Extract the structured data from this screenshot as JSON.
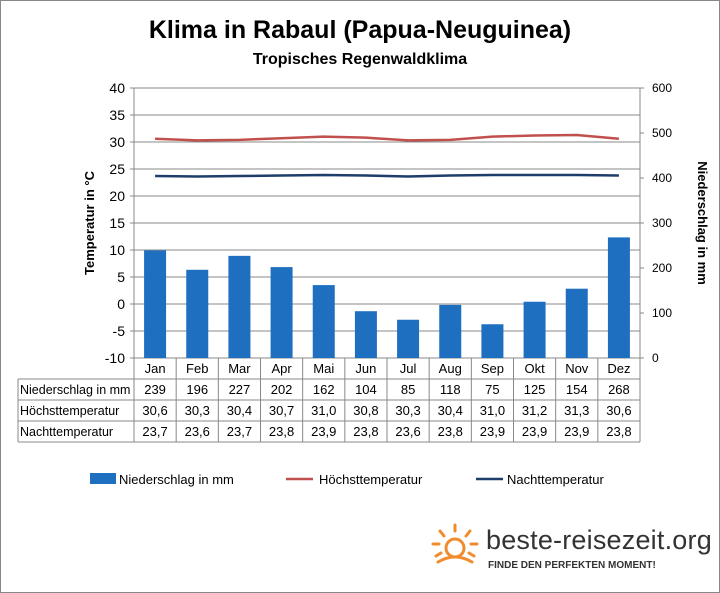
{
  "title": "Klima in Rabaul (Papua-Neuguinea)",
  "subtitle": "Tropisches Regenwaldklima",
  "brand": {
    "name": "beste-reisezeit.org",
    "tagline": "FINDE DEN PERFEKTEN MOMENT!",
    "logo_icon": "sun-icon",
    "logo_color": "#f08c2e"
  },
  "chart_data": {
    "type": "bar",
    "categories": [
      "Jan",
      "Feb",
      "Mar",
      "Apr",
      "Mai",
      "Jun",
      "Jul",
      "Aug",
      "Sep",
      "Okt",
      "Nov",
      "Dez"
    ],
    "ylabel_left": "Temperatur in °C",
    "ylabel_right": "Niederschlag in mm",
    "ylim_left": [
      -10,
      40
    ],
    "ylim_right": [
      0,
      600
    ],
    "yticks_left": [
      "40",
      "35",
      "30",
      "25",
      "20",
      "15",
      "10",
      "5",
      "0",
      "-5",
      "-10"
    ],
    "yticks_right": [
      "600",
      "500",
      "400",
      "300",
      "200",
      "100",
      "0"
    ],
    "grid": true,
    "legend_position": "bottom",
    "series": [
      {
        "name": "Niederschlag in mm",
        "type": "bar",
        "axis": "right",
        "color": "#1f6fc0",
        "values": [
          239,
          196,
          227,
          202,
          162,
          104,
          85,
          118,
          75,
          125,
          154,
          268
        ]
      },
      {
        "name": "Höchsttemperatur",
        "type": "line",
        "axis": "left",
        "color": "#c0504d",
        "values": [
          30.6,
          30.3,
          30.4,
          30.7,
          31.0,
          30.8,
          30.3,
          30.4,
          31.0,
          31.2,
          31.3,
          30.6
        ]
      },
      {
        "name": "Nachttemperatur",
        "type": "line",
        "axis": "left",
        "color": "#1f3d6b",
        "values": [
          23.7,
          23.6,
          23.7,
          23.8,
          23.9,
          23.8,
          23.6,
          23.8,
          23.9,
          23.9,
          23.9,
          23.8
        ]
      }
    ],
    "table": {
      "rows": [
        {
          "label": "Niederschlag in mm",
          "cells": [
            "239",
            "196",
            "227",
            "202",
            "162",
            "104",
            "85",
            "118",
            "75",
            "125",
            "154",
            "268"
          ]
        },
        {
          "label": "Höchsttemperatur",
          "cells": [
            "30,6",
            "30,3",
            "30,4",
            "30,7",
            "31,0",
            "30,8",
            "30,3",
            "30,4",
            "31,0",
            "31,2",
            "31,3",
            "30,6"
          ]
        },
        {
          "label": "Nachttemperatur",
          "cells": [
            "23,7",
            "23,6",
            "23,7",
            "23,8",
            "23,9",
            "23,8",
            "23,6",
            "23,8",
            "23,9",
            "23,9",
            "23,9",
            "23,8"
          ]
        }
      ]
    }
  }
}
